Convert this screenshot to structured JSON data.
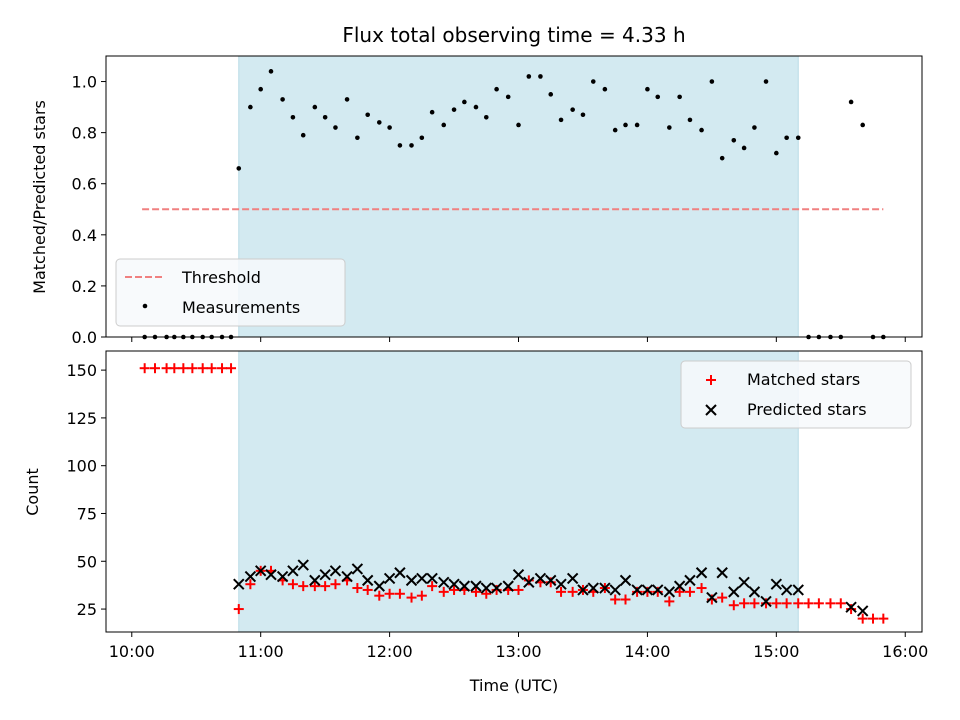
{
  "colors": {
    "shade": "#d3eaf1",
    "shade_edge": "#b9dbe6",
    "threshold": "#f08080",
    "measurement": "#000000",
    "matched": "#ff0000",
    "predicted": "#000000"
  },
  "chart_data": [
    {
      "type": "scatter",
      "title": "Flux total observing time = 4.33 h",
      "ylabel": "Matched/Predicted stars",
      "xlabel": "",
      "xlim": [
        9.8,
        16.13
      ],
      "ylim": [
        0,
        1.1
      ],
      "yticks": [
        0,
        0.2,
        0.4,
        0.6,
        0.8,
        1.0
      ],
      "ytick_labels": [
        "0.0",
        "0.2",
        "0.4",
        "0.6",
        "0.8",
        "1.0"
      ],
      "observing_window": [
        10.83,
        15.17
      ],
      "threshold": {
        "name": "Threshold",
        "value": 0.5,
        "x_range": [
          10.08,
          15.83
        ]
      },
      "legend": {
        "position": "lower-left",
        "entries": [
          "Threshold",
          "Measurements"
        ]
      },
      "series": [
        {
          "name": "Measurements",
          "x": [
            10.1,
            10.18,
            10.27,
            10.33,
            10.4,
            10.47,
            10.55,
            10.62,
            10.7,
            10.77,
            10.83,
            10.92,
            11.0,
            11.08,
            11.17,
            11.25,
            11.33,
            11.42,
            11.5,
            11.58,
            11.67,
            11.75,
            11.83,
            11.92,
            12.0,
            12.08,
            12.17,
            12.25,
            12.33,
            12.42,
            12.5,
            12.58,
            12.67,
            12.75,
            12.83,
            12.92,
            13.0,
            13.08,
            13.17,
            13.25,
            13.33,
            13.42,
            13.5,
            13.58,
            13.67,
            13.75,
            13.83,
            13.92,
            14.0,
            14.08,
            14.17,
            14.25,
            14.33,
            14.42,
            14.5,
            14.58,
            14.67,
            14.75,
            14.83,
            14.92,
            15.0,
            15.08,
            15.17,
            15.25,
            15.33,
            15.42,
            15.5,
            15.58,
            15.67,
            15.75,
            15.83
          ],
          "y": [
            0,
            0,
            0,
            0,
            0,
            0,
            0,
            0,
            0,
            0,
            0.66,
            0.9,
            0.97,
            1.04,
            0.93,
            0.86,
            0.79,
            0.9,
            0.86,
            0.82,
            0.93,
            0.78,
            0.87,
            0.84,
            0.82,
            0.75,
            0.75,
            0.78,
            0.88,
            0.83,
            0.89,
            0.92,
            0.9,
            0.86,
            0.97,
            0.94,
            0.83,
            1.02,
            1.02,
            0.95,
            0.85,
            0.89,
            0.87,
            1.0,
            0.97,
            0.81,
            0.83,
            0.83,
            0.97,
            0.94,
            0.82,
            0.94,
            0.85,
            0.81,
            1.0,
            0.7,
            0.77,
            0.74,
            0.82,
            1.0,
            0.72,
            0.78,
            0.78,
            0,
            0,
            0,
            0,
            0.92,
            0.83,
            0,
            0
          ]
        }
      ]
    },
    {
      "type": "scatter",
      "title": "",
      "ylabel": "Count",
      "xlabel": "Time (UTC)",
      "xlim": [
        9.8,
        16.13
      ],
      "ylim": [
        13,
        160
      ],
      "yticks": [
        25,
        50,
        75,
        100,
        125,
        150
      ],
      "ytick_labels": [
        "25",
        "50",
        "75",
        "100",
        "125",
        "150"
      ],
      "xticks": [
        10,
        11,
        12,
        13,
        14,
        15,
        16
      ],
      "xtick_labels": [
        "10:00",
        "11:00",
        "12:00",
        "13:00",
        "14:00",
        "15:00",
        "16:00"
      ],
      "observing_window": [
        10.83,
        15.17
      ],
      "legend": {
        "position": "top-right",
        "entries": [
          "Matched stars",
          "Predicted stars"
        ]
      },
      "series": [
        {
          "name": "Matched stars",
          "marker": "+",
          "x": [
            10.1,
            10.18,
            10.27,
            10.33,
            10.4,
            10.47,
            10.55,
            10.62,
            10.7,
            10.77,
            10.83,
            10.92,
            11.0,
            11.08,
            11.17,
            11.25,
            11.33,
            11.42,
            11.5,
            11.58,
            11.67,
            11.75,
            11.83,
            11.92,
            12.0,
            12.08,
            12.17,
            12.25,
            12.33,
            12.42,
            12.5,
            12.58,
            12.67,
            12.75,
            12.83,
            12.92,
            13.0,
            13.08,
            13.17,
            13.25,
            13.33,
            13.42,
            13.5,
            13.58,
            13.67,
            13.75,
            13.83,
            13.92,
            14.0,
            14.08,
            14.17,
            14.25,
            14.33,
            14.42,
            14.5,
            14.58,
            14.67,
            14.75,
            14.83,
            14.92,
            15.0,
            15.08,
            15.17,
            15.25,
            15.33,
            15.42,
            15.5,
            15.58,
            15.67,
            15.75,
            15.83
          ],
          "y": [
            151,
            151,
            151,
            151,
            151,
            151,
            151,
            151,
            151,
            151,
            25,
            38,
            45,
            45,
            40,
            38,
            37,
            37,
            37,
            38,
            40,
            36,
            35,
            32,
            33,
            33,
            31,
            32,
            37,
            34,
            35,
            35,
            34,
            33,
            35,
            35,
            35,
            40,
            39,
            39,
            34,
            34,
            35,
            34,
            36,
            30,
            30,
            34,
            34,
            34,
            29,
            34,
            34,
            36,
            30,
            31,
            27,
            28,
            28,
            28,
            28,
            28,
            28,
            28,
            28,
            28,
            28,
            25,
            20,
            20,
            20
          ]
        },
        {
          "name": "Predicted stars",
          "marker": "x",
          "x": [
            10.83,
            10.92,
            11.0,
            11.08,
            11.17,
            11.25,
            11.33,
            11.42,
            11.5,
            11.58,
            11.67,
            11.75,
            11.83,
            11.92,
            12.0,
            12.08,
            12.17,
            12.25,
            12.33,
            12.42,
            12.5,
            12.58,
            12.67,
            12.75,
            12.83,
            12.92,
            13.0,
            13.08,
            13.17,
            13.25,
            13.33,
            13.42,
            13.5,
            13.58,
            13.67,
            13.75,
            13.83,
            13.92,
            14.0,
            14.08,
            14.17,
            14.25,
            14.33,
            14.42,
            14.5,
            14.58,
            14.67,
            14.75,
            14.83,
            14.92,
            15.0,
            15.08,
            15.17,
            15.58,
            15.67
          ],
          "y": [
            38,
            42,
            45,
            43,
            42,
            45,
            48,
            40,
            43,
            45,
            42,
            46,
            40,
            37,
            41,
            44,
            40,
            41,
            41,
            39,
            38,
            37,
            37,
            36,
            36,
            37,
            43,
            39,
            41,
            40,
            38,
            41,
            35,
            36,
            36,
            35,
            40,
            35,
            35,
            35,
            34,
            37,
            40,
            44,
            31,
            44,
            34,
            39,
            34,
            29,
            38,
            35,
            35,
            26,
            24
          ]
        }
      ]
    }
  ]
}
